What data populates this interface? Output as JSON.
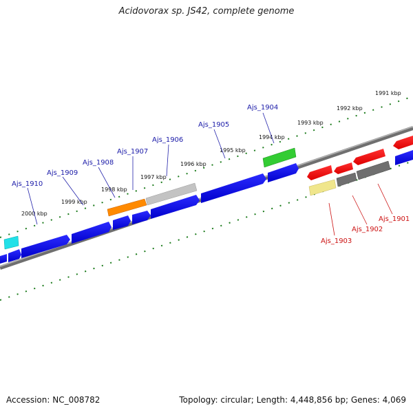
{
  "title": "Acidovorax sp. JS42, complete genome",
  "footer": {
    "accession": "Accession: NC_008782",
    "info": "Topology: circular; Length: 4,448,856 bp; Genes: 4,069"
  },
  "colors": {
    "forward_gene": "#0000ee",
    "reverse_gene": "#ee0000",
    "scale_ticks": "#1a7a1a",
    "backbone": "#808080",
    "label_forward": "#1a1aa8",
    "label_reverse": "#cc1111"
  },
  "scale_labels": [
    {
      "label": "1991 kbp"
    },
    {
      "label": "1992 kbp"
    },
    {
      "label": "1993 kbp"
    },
    {
      "label": "1994 kbp"
    },
    {
      "label": "1995 kbp"
    },
    {
      "label": "1996 kbp"
    },
    {
      "label": "1997 kbp"
    },
    {
      "label": "1998 kbp"
    },
    {
      "label": "1999 kbp"
    },
    {
      "label": "2000 kbp"
    }
  ],
  "gene_labels_forward": [
    {
      "label": "Ajs_1904"
    },
    {
      "label": "Ajs_1905"
    },
    {
      "label": "Ajs_1906"
    },
    {
      "label": "Ajs_1907"
    },
    {
      "label": "Ajs_1908"
    },
    {
      "label": "Ajs_1909"
    },
    {
      "label": "Ajs_1910"
    }
  ],
  "gene_labels_reverse": [
    {
      "label": "Ajs_1901"
    },
    {
      "label": "Ajs_1902"
    },
    {
      "label": "Ajs_1903"
    }
  ]
}
